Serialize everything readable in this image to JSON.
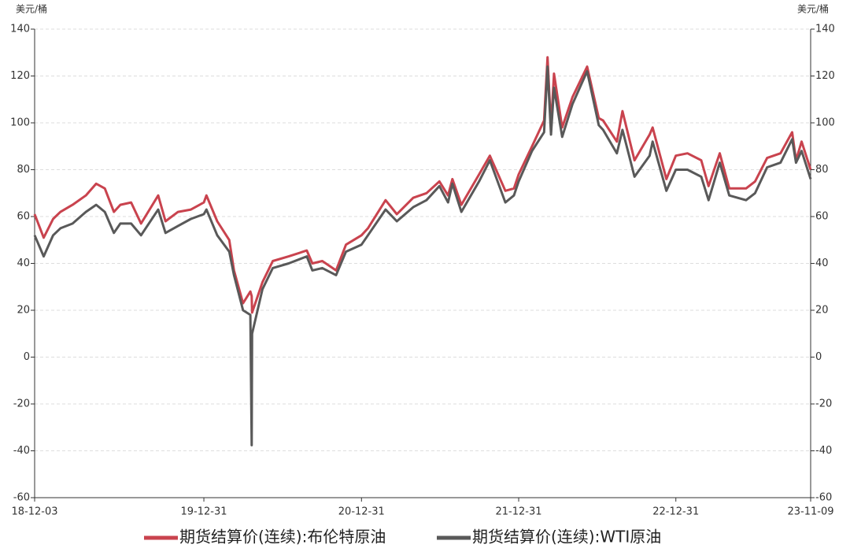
{
  "chart_data": {
    "type": "line",
    "y_unit_label": "美元/桶",
    "y2_unit_label": "美元/桶",
    "x": [
      "18-12-03",
      "18-12-24",
      "19-01-15",
      "19-02-01",
      "19-03-01",
      "19-04-01",
      "19-04-25",
      "19-05-15",
      "19-06-05",
      "19-06-20",
      "19-07-15",
      "19-08-07",
      "19-09-16",
      "19-10-03",
      "19-11-01",
      "19-12-01",
      "19-12-31",
      "20-01-06",
      "20-01-31",
      "20-02-28",
      "20-03-10",
      "20-03-31",
      "20-04-17",
      "20-04-20",
      "20-04-21",
      "20-05-15",
      "20-06-08",
      "20-07-15",
      "20-08-26",
      "20-09-08",
      "20-10-01",
      "20-11-02",
      "20-11-25",
      "20-12-31",
      "21-01-15",
      "21-02-25",
      "21-03-23",
      "21-04-30",
      "21-05-31",
      "21-06-30",
      "21-07-20",
      "21-07-30",
      "21-08-20",
      "21-09-30",
      "21-10-25",
      "21-11-30",
      "21-12-20",
      "21-12-31",
      "22-01-31",
      "22-02-28",
      "22-03-08",
      "22-03-16",
      "22-03-23",
      "22-04-11",
      "22-05-05",
      "22-06-08",
      "22-07-05",
      "22-07-15",
      "22-08-16",
      "22-08-29",
      "22-09-26",
      "22-10-31",
      "22-11-07",
      "22-12-09",
      "22-12-31",
      "23-01-27",
      "23-02-28",
      "23-03-17",
      "23-04-12",
      "23-05-04",
      "23-06-12",
      "23-07-03",
      "23-07-31",
      "23-08-31",
      "23-09-27",
      "23-10-06",
      "23-10-19",
      "23-11-09"
    ],
    "series": [
      {
        "name": "期货结算价(连续):布伦特原油",
        "color": "#c9434e",
        "values": [
          61,
          51,
          59,
          62,
          65,
          69,
          74,
          72,
          62,
          65,
          66,
          57,
          69,
          58,
          62,
          63,
          66,
          69,
          58,
          50,
          37,
          23,
          28,
          26,
          19,
          32,
          41,
          43,
          45.5,
          40,
          41,
          37,
          48,
          52,
          55,
          67,
          61,
          68,
          70,
          75,
          69,
          76,
          65,
          78,
          86,
          71,
          72,
          78,
          90,
          101,
          128,
          98,
          121,
          98,
          111,
          124,
          102,
          101,
          92,
          105,
          84,
          95,
          98,
          76,
          86,
          87,
          84,
          73,
          87,
          72,
          72,
          75,
          85,
          87,
          96,
          84,
          92,
          80
        ]
      },
      {
        "name": "期货结算价(连续):WTI原油",
        "color": "#595959",
        "values": [
          52,
          43,
          52,
          55,
          57,
          62,
          65,
          62,
          53,
          57,
          57,
          52,
          63,
          53,
          56,
          59,
          61,
          63,
          52,
          45,
          35,
          20,
          18,
          -37.6,
          10,
          29,
          38,
          40,
          43,
          37,
          38,
          35,
          45,
          48,
          52,
          63,
          58,
          64,
          67,
          73,
          66,
          74,
          62,
          75,
          84,
          66,
          69,
          75,
          88,
          96,
          124,
          95,
          115,
          94,
          108,
          122,
          99,
          97,
          87,
          97,
          77,
          86,
          92,
          71,
          80,
          80,
          77,
          67,
          83,
          69,
          67,
          70,
          81,
          83,
          93,
          83,
          88,
          76
        ]
      }
    ],
    "xticks": [
      "18-12-03",
      "19-12-31",
      "20-12-31",
      "21-12-31",
      "22-12-31",
      "23-11-09"
    ],
    "ylim": [
      -60,
      140
    ],
    "yticks": [
      -60,
      -40,
      -20,
      0,
      20,
      40,
      60,
      80,
      100,
      120,
      140
    ],
    "y2lim": [
      -60,
      140
    ],
    "y2ticks": [
      -60,
      -40,
      -20,
      0,
      20,
      40,
      60,
      80,
      100,
      120,
      140
    ],
    "grid": true
  }
}
